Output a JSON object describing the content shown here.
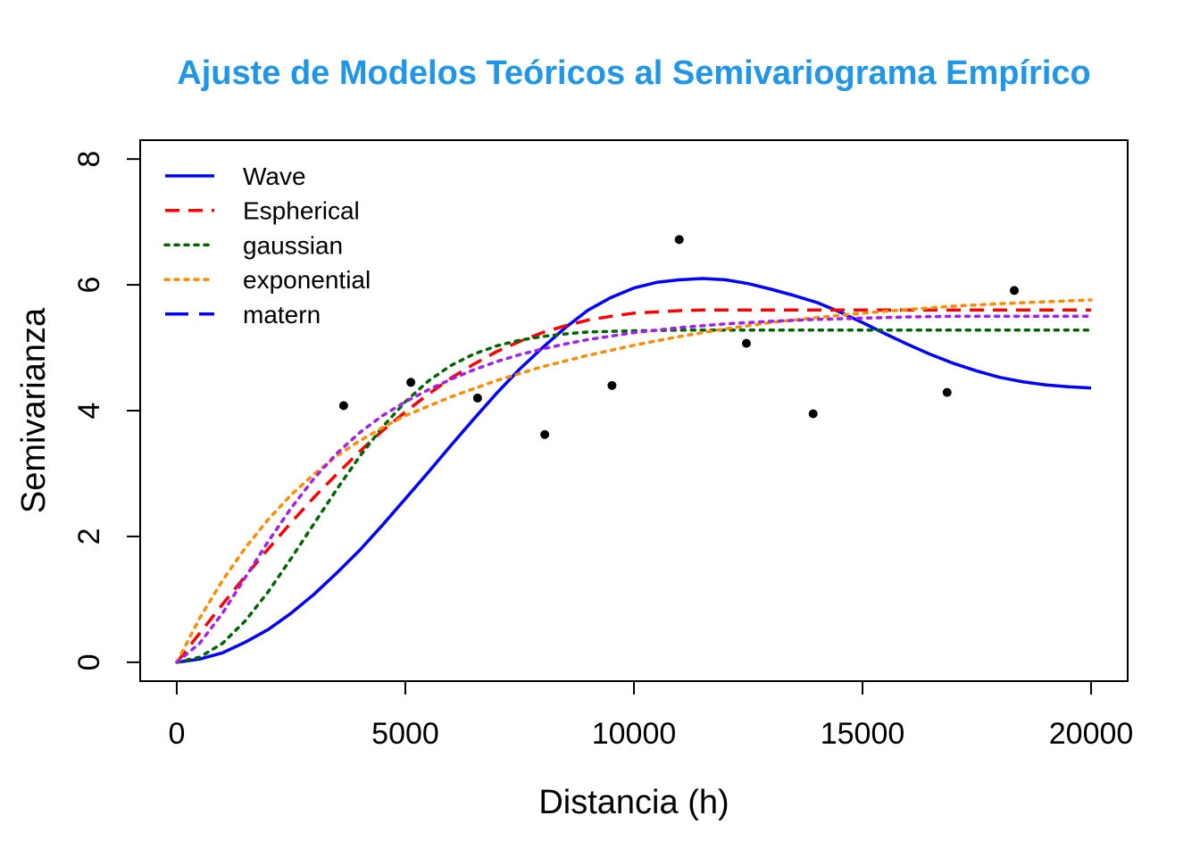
{
  "chart_data": {
    "type": "scatter",
    "title": "Ajuste de Modelos Teóricos al Semivariograma Empírico",
    "title_color": "#2196E8",
    "xlabel": "Distancia (h)",
    "ylabel": "Semivarianza",
    "xlim": [
      -800,
      20800
    ],
    "ylim": [
      -0.3,
      8.3
    ],
    "x_ticks": [
      0,
      5000,
      10000,
      15000,
      20000
    ],
    "x_tick_labels": [
      "0",
      "5000",
      "10000",
      "15000",
      "20000"
    ],
    "y_ticks": [
      0,
      2,
      4,
      6,
      8
    ],
    "y_tick_labels": [
      "0",
      "2",
      "4",
      "6",
      "8"
    ],
    "grid": false,
    "legend_position": "top-left",
    "points": {
      "color": "#000000",
      "x": [
        3650,
        5120,
        6580,
        8050,
        9520,
        10990,
        12460,
        13920,
        16850,
        18320
      ],
      "y": [
        4.08,
        4.45,
        4.2,
        3.62,
        4.4,
        6.72,
        5.07,
        3.95,
        4.29,
        5.91
      ]
    },
    "series": [
      {
        "name": "Wave",
        "color": "#0000FF",
        "dash": "solid",
        "x": [
          0,
          500,
          1000,
          1500,
          2000,
          2500,
          3000,
          3500,
          4000,
          4500,
          5000,
          5500,
          6000,
          6500,
          7000,
          7500,
          8000,
          8500,
          9000,
          9500,
          10000,
          10500,
          11000,
          11500,
          12000,
          12500,
          13000,
          13500,
          14000,
          14500,
          15000,
          15500,
          16000,
          16500,
          17000,
          17500,
          18000,
          18500,
          19000,
          19500,
          20000
        ],
        "y": [
          0,
          0.05,
          0.15,
          0.32,
          0.52,
          0.78,
          1.08,
          1.42,
          1.78,
          2.18,
          2.6,
          3.02,
          3.45,
          3.87,
          4.28,
          4.66,
          5.0,
          5.32,
          5.6,
          5.8,
          5.95,
          6.04,
          6.08,
          6.1,
          6.08,
          6.02,
          5.93,
          5.83,
          5.72,
          5.57,
          5.4,
          5.22,
          5.05,
          4.89,
          4.75,
          4.63,
          4.53,
          4.46,
          4.41,
          4.38,
          4.36
        ]
      },
      {
        "name": "Espherical",
        "color": "#FF0000",
        "dash": "dashed",
        "x": [
          0,
          500,
          1000,
          1500,
          2000,
          2500,
          3000,
          3500,
          4000,
          4500,
          5000,
          5500,
          6000,
          6500,
          7000,
          7500,
          8000,
          8500,
          9000,
          9500,
          10000,
          10500,
          11000,
          11500,
          12000,
          13000,
          14000,
          15000,
          16000,
          17000,
          18000,
          19000,
          20000
        ],
        "y": [
          0,
          0.46,
          0.92,
          1.37,
          1.8,
          2.22,
          2.62,
          2.99,
          3.35,
          3.68,
          3.98,
          4.26,
          4.52,
          4.74,
          4.94,
          5.1,
          5.24,
          5.35,
          5.44,
          5.5,
          5.55,
          5.57,
          5.59,
          5.6,
          5.6,
          5.6,
          5.6,
          5.6,
          5.6,
          5.6,
          5.6,
          5.6,
          5.6
        ]
      },
      {
        "name": "gaussian",
        "color": "#006400",
        "dash": "dotted",
        "x": [
          0,
          500,
          1000,
          1500,
          2000,
          2500,
          3000,
          3500,
          4000,
          4500,
          5000,
          5500,
          6000,
          6500,
          7000,
          7500,
          8000,
          8500,
          9000,
          10000,
          11000,
          12000,
          13000,
          14000,
          15000,
          16000,
          17000,
          18000,
          19000,
          20000
        ],
        "y": [
          0,
          0.08,
          0.3,
          0.66,
          1.12,
          1.65,
          2.2,
          2.75,
          3.27,
          3.74,
          4.14,
          4.47,
          4.72,
          4.9,
          5.03,
          5.12,
          5.18,
          5.22,
          5.25,
          5.27,
          5.28,
          5.28,
          5.28,
          5.28,
          5.28,
          5.28,
          5.28,
          5.28,
          5.28,
          5.28
        ]
      },
      {
        "name": "exponential",
        "color": "#FF8C00",
        "dash": "dotted",
        "x": [
          0,
          500,
          1000,
          1500,
          2000,
          2500,
          3000,
          3500,
          4000,
          4500,
          5000,
          6000,
          7000,
          8000,
          9000,
          10000,
          11000,
          12000,
          13000,
          14000,
          15000,
          16000,
          17000,
          18000,
          19000,
          20000
        ],
        "y": [
          0,
          0.7,
          1.3,
          1.82,
          2.27,
          2.66,
          2.99,
          3.28,
          3.52,
          3.73,
          3.92,
          4.22,
          4.48,
          4.7,
          4.88,
          5.04,
          5.18,
          5.3,
          5.4,
          5.48,
          5.55,
          5.61,
          5.66,
          5.7,
          5.73,
          5.76
        ]
      },
      {
        "name": "matern",
        "color": "#0000FF",
        "dash": "longdash",
        "x": [],
        "y": []
      },
      {
        "name": "",
        "color": "#A020F0",
        "dash": "dotted",
        "x": [
          0,
          500,
          1000,
          1500,
          2000,
          2500,
          3000,
          3500,
          4000,
          4500,
          5000,
          5500,
          6000,
          6500,
          7000,
          7500,
          8000,
          8500,
          9000,
          10000,
          11000,
          12000,
          13000,
          14000,
          15000,
          16000,
          17000,
          18000,
          19000,
          20000
        ],
        "y": [
          0,
          0.3,
          0.78,
          1.35,
          1.92,
          2.45,
          2.92,
          3.32,
          3.65,
          3.92,
          4.14,
          4.33,
          4.5,
          4.65,
          4.78,
          4.89,
          4.98,
          5.06,
          5.13,
          5.24,
          5.32,
          5.38,
          5.42,
          5.45,
          5.47,
          5.49,
          5.5,
          5.5,
          5.5,
          5.5
        ]
      }
    ]
  }
}
